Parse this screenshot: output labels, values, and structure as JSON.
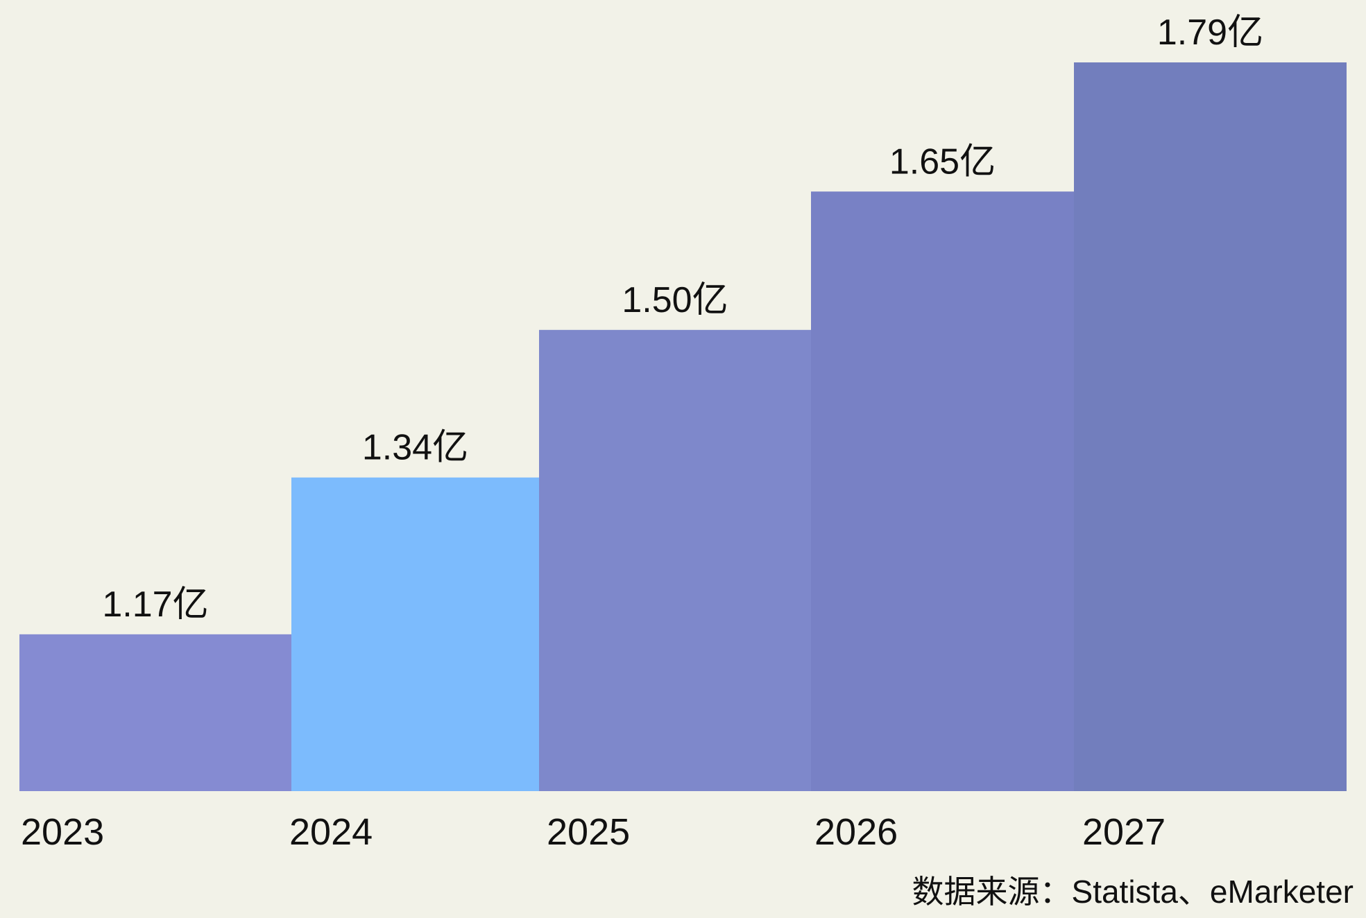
{
  "chart_data": {
    "type": "bar",
    "categories": [
      "2023",
      "2024",
      "2025",
      "2026",
      "2027"
    ],
    "values": [
      1.17,
      1.34,
      1.5,
      1.65,
      1.79
    ],
    "value_labels": [
      "1.17亿",
      "1.34亿",
      "1.50亿",
      "1.65亿",
      "1.79亿"
    ],
    "bar_colors": [
      "#858bd2",
      "#7cbbfd",
      "#7e88cb",
      "#7881c5",
      "#727ebd"
    ],
    "title": "",
    "xlabel": "",
    "ylabel": "",
    "ylim": [
      1.0,
      1.79
    ],
    "grid": false,
    "legend": "none"
  },
  "source_note": "数据来源：Statista、eMarketer",
  "colors": {
    "background": "#f2f2e8",
    "text": "#111111"
  }
}
